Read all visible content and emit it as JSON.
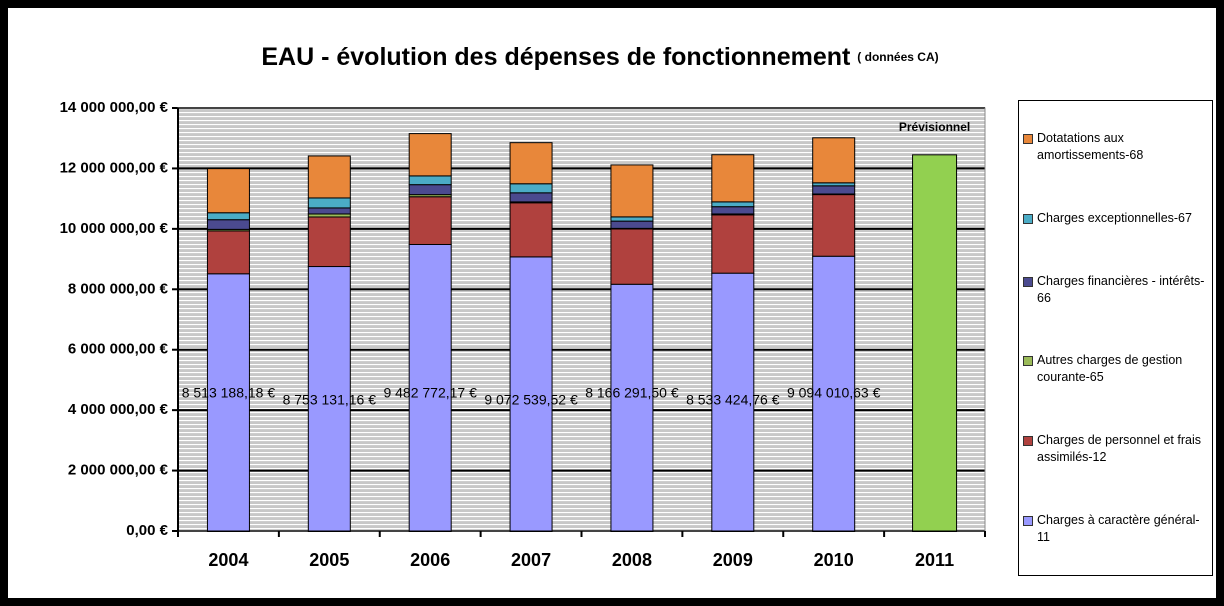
{
  "chart_data": {
    "type": "bar",
    "stacked": true,
    "title": "EAU - évolution des dépenses de fonctionnement",
    "subtitle": "( données CA)",
    "categories": [
      "2004",
      "2005",
      "2006",
      "2007",
      "2008",
      "2009",
      "2010",
      "2011"
    ],
    "series": [
      {
        "name": "Charges à caractère général-11",
        "color": "#9999ff",
        "values": [
          8513188.18,
          8753131.16,
          9482772.17,
          9072539.52,
          8166291.5,
          8533424.76,
          9094010.63,
          null
        ],
        "value_labels": [
          "8 513 188,18 €",
          "8 753 131,16 €",
          "9 482 772,17 €",
          "9 072 539,52 €",
          "8 166 291,50 €",
          "8 533 424,76 €",
          "9 094 010,63 €",
          null
        ]
      },
      {
        "name": "Charges de personnel et frais assimilés-12",
        "color": "#b0413e",
        "values": [
          1420000,
          1640000,
          1580000,
          1790000,
          1830000,
          1930000,
          2040000,
          null
        ]
      },
      {
        "name": "Autres charges de gestion courante-65",
        "color": "#9bbb59",
        "values": [
          50000,
          100000,
          70000,
          30000,
          20000,
          30000,
          20000,
          null
        ]
      },
      {
        "name": "Charges financières - intérêts-66",
        "color": "#4b4a8f",
        "values": [
          320000,
          200000,
          330000,
          300000,
          240000,
          240000,
          270000,
          null
        ]
      },
      {
        "name": "Charges exceptionnelles-67",
        "color": "#4bacc6",
        "values": [
          230000,
          330000,
          290000,
          300000,
          140000,
          160000,
          100000,
          null
        ]
      },
      {
        "name": "Dotatations aux amortissements-68",
        "color": "#e8873a",
        "values": [
          1460000,
          1390000,
          1400000,
          1360000,
          1720000,
          1560000,
          1490000,
          null
        ]
      }
    ],
    "forecast": {
      "category": "2011",
      "value": 12450000,
      "label": "Prévisionnel",
      "color": "#92d050"
    },
    "ylim": [
      0,
      14000000
    ],
    "yticks": [
      {
        "value": 0,
        "label": "0,00 €"
      },
      {
        "value": 2000000,
        "label": "2 000 000,00 €"
      },
      {
        "value": 4000000,
        "label": "4 000 000,00 €"
      },
      {
        "value": 6000000,
        "label": "6 000 000,00 €"
      },
      {
        "value": 8000000,
        "label": "8 000 000,00 €"
      },
      {
        "value": 10000000,
        "label": "10 000 000,00 €"
      },
      {
        "value": 12000000,
        "label": "12 000 000,00 €"
      },
      {
        "value": 14000000,
        "label": "14 000 000,00 €"
      }
    ],
    "grid": true,
    "legend": "right"
  }
}
